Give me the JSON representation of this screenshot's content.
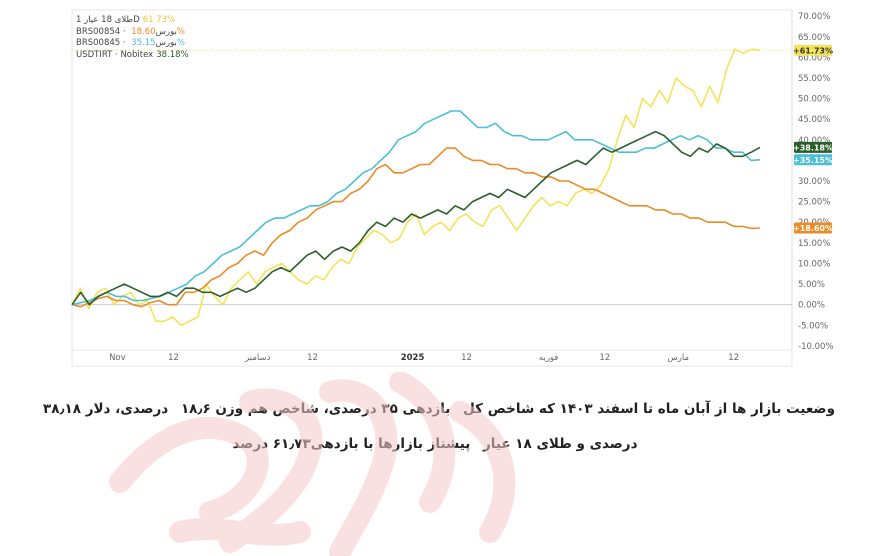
{
  "chart_data": {
    "type": "line",
    "y_tick_labels": [
      "70.00%",
      "65.00%",
      "60.00%",
      "55.00%",
      "50.00%",
      "45.00%",
      "40.00%",
      "35.00%",
      "30.00%",
      "25.00%",
      "20.00%",
      "15.00%",
      "10.00%",
      "5.00%",
      "0.00%",
      "-5.00%",
      "-10.00%"
    ],
    "y_ticks": [
      70,
      65,
      60,
      55,
      50,
      45,
      40,
      35,
      30,
      25,
      20,
      15,
      10,
      5,
      0,
      -5,
      -10
    ],
    "ylim": [
      -11,
      71.5
    ],
    "x_tick_labels": [
      {
        "label": "Nov",
        "pos": 0.063,
        "bold": false
      },
      {
        "label": "12",
        "pos": 0.141,
        "bold": false
      },
      {
        "label": "دسامبر",
        "pos": 0.258,
        "bold": false
      },
      {
        "label": "12",
        "pos": 0.334,
        "bold": false
      },
      {
        "label": "2025",
        "pos": 0.473,
        "bold": true
      },
      {
        "label": "12",
        "pos": 0.548,
        "bold": false
      },
      {
        "label": "فوریه",
        "pos": 0.662,
        "bold": false
      },
      {
        "label": "12",
        "pos": 0.74,
        "bold": false
      },
      {
        "label": "مارس",
        "pos": 0.842,
        "bold": false
      },
      {
        "label": "12",
        "pos": 0.919,
        "bold": false
      }
    ],
    "series": [
      {
        "name": "طلای 18 عیار 1D",
        "color": "#f2e35a",
        "last_label": "+61.73%",
        "last_label_color": "#f2e35a",
        "last_label_text_color": "#333333",
        "values": [
          0,
          4,
          -1,
          3,
          4,
          0,
          2,
          3,
          0,
          1,
          -4,
          -4,
          -3,
          -5,
          -4,
          -3,
          5,
          2,
          0,
          4,
          6,
          8,
          5,
          8,
          9,
          10,
          8,
          6,
          5,
          7,
          6,
          9,
          11,
          10,
          14,
          16,
          18,
          17,
          15,
          16,
          20,
          22,
          17,
          19,
          20,
          18,
          21,
          22,
          20,
          19,
          23,
          24,
          21,
          18,
          21,
          24,
          26,
          24,
          25,
          24,
          27,
          28,
          27,
          29,
          33,
          40,
          46,
          43,
          50,
          48,
          52,
          49,
          55,
          53,
          52,
          48,
          53,
          49,
          57,
          62,
          61,
          62,
          61.73
        ]
      },
      {
        "name": "بورس · BRS00854",
        "color": "#e98c27",
        "last_label": "+18.60%",
        "last_label_color": "#e98c27",
        "last_label_text_color": "#ffffff",
        "values": [
          0,
          -0.5,
          0.5,
          1.5,
          2,
          1,
          1,
          0,
          -0.5,
          0.5,
          1,
          0,
          0,
          3,
          3,
          4,
          6,
          7,
          9,
          10,
          12,
          13,
          12,
          15,
          17,
          18,
          20,
          21,
          23,
          24,
          25,
          25,
          27,
          28,
          30,
          33,
          34,
          32,
          32,
          33,
          34,
          34,
          36,
          38,
          38,
          36,
          35,
          35,
          34,
          34,
          33,
          33,
          32,
          32,
          31,
          31,
          30,
          30,
          29,
          28,
          28,
          27,
          26,
          25,
          24,
          24,
          24,
          23,
          23,
          22,
          22,
          21,
          21,
          20,
          20,
          20,
          19,
          19,
          18.5,
          18.6
        ]
      },
      {
        "name": "بورس · BRS00845",
        "color": "#4bbfd6",
        "last_label": "+35.15%",
        "last_label_color": "#4bbfd6",
        "last_label_text_color": "#ffffff",
        "values": [
          0,
          0.5,
          1,
          2,
          3,
          2,
          2,
          1,
          1,
          1.5,
          2,
          3,
          4,
          5,
          7,
          8,
          10,
          12,
          13,
          14,
          16,
          18,
          20,
          21,
          21,
          22,
          23,
          24,
          24,
          25,
          27,
          28,
          30,
          32,
          33,
          35,
          37,
          40,
          41,
          42,
          44,
          45,
          46,
          47,
          47,
          45,
          43,
          43,
          44,
          42,
          41,
          41,
          40,
          40,
          40,
          41,
          42,
          40,
          40,
          40,
          39,
          38,
          37,
          37,
          37,
          38,
          38,
          39,
          40,
          41,
          40,
          41,
          40,
          38,
          38,
          37,
          37,
          35,
          35.15
        ]
      },
      {
        "name": "Nobitex · USDTIRT",
        "color": "#2b5e2b",
        "last_label": "+38.18%",
        "last_label_color": "#2b5e2b",
        "last_label_text_color": "#ffffff",
        "values": [
          0,
          3,
          0,
          2,
          3,
          4,
          5,
          4,
          3,
          2,
          2,
          3,
          2,
          4,
          4,
          3,
          3,
          2,
          3,
          4,
          3,
          4,
          6,
          8,
          9,
          8,
          10,
          12,
          13,
          11,
          13,
          14,
          13,
          15,
          18,
          20,
          19,
          21,
          20,
          22,
          21,
          22,
          23,
          22,
          24,
          23,
          25,
          26,
          27,
          26,
          28,
          27,
          26,
          28,
          30,
          32,
          33,
          34,
          35,
          34,
          36,
          38,
          37,
          38,
          39,
          40,
          41,
          42,
          41,
          39,
          37,
          36,
          38,
          37,
          39,
          38,
          36,
          36,
          37,
          38.18
        ]
      }
    ]
  },
  "legend": [
    {
      "name": "طلای 18 عیار 1D",
      "value": "61.73%",
      "color": "#e8c43a"
    },
    {
      "name": "BRS00854 · بورس",
      "value": "18.60%",
      "color": "#e98c27"
    },
    {
      "name": "BRS00845 · بورس",
      "value": "35.15%",
      "color": "#4bbfd6"
    },
    {
      "name": "USDTIRT · Nobitex",
      "value": "38.18%",
      "color": "#2b5e2b"
    }
  ],
  "caption": {
    "line1_a": "وضعیت بازار ها از آبان ماه تا اسفند ۱۴۰۳ که شاخص کل",
    "line1_b": "بازدهی ۳۵ درصدی، شاخص هم وزن",
    "line1_c": "۱۸٫۶ درصدی، دلار",
    "line2_a": "۳۸٫۱۸ درصدی و طلای ۱۸ عیار",
    "line2_b": "پیشتاز بازارها با بازدهی۶۱٫۷۳ درصد",
    "swatch_index_color": "#4bbfd6",
    "swatch_equal_color": "#e98c27",
    "swatch_dollar_color": "#2b5e2b",
    "swatch_gold_color": "#f2e35a"
  },
  "watermark_color": "#f6c9c9"
}
